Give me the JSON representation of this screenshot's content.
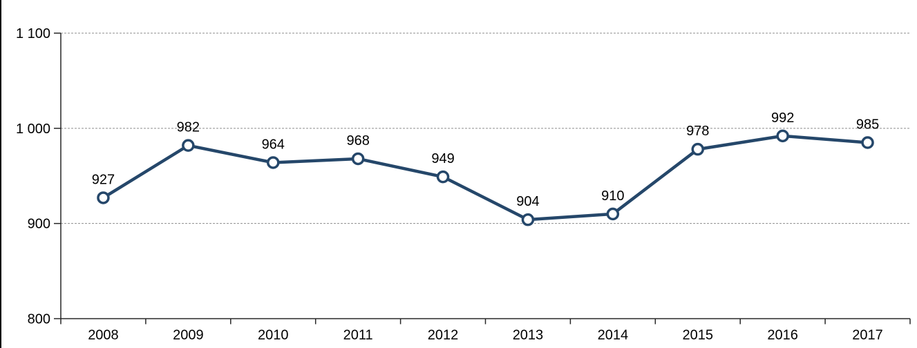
{
  "page": {
    "background_color": "#FFFFFF",
    "left_border_color": "#000000"
  },
  "chart_data": {
    "type": "line",
    "title": "",
    "categories": [
      "2008",
      "2009",
      "2010",
      "2011",
      "2012",
      "2013",
      "2014",
      "2015",
      "2016",
      "2017"
    ],
    "series": [
      {
        "name": "series-1",
        "values": [
          927,
          982,
          964,
          968,
          949,
          904,
          910,
          978,
          992,
          985
        ],
        "data_labels": [
          "927",
          "982",
          "964",
          "968",
          "949",
          "904",
          "910",
          "978",
          "992",
          "985"
        ],
        "line_color": "#25476A",
        "marker": {
          "shape": "circle",
          "fill": "#FFFFFF",
          "stroke": "#25476A"
        }
      }
    ],
    "xlabel": "",
    "ylabel": "",
    "y_axis": {
      "min": 800,
      "max": 1100,
      "step": 100,
      "tick_labels": [
        "800",
        "900",
        "1 000",
        "1 100"
      ]
    },
    "grid": {
      "horizontal": true,
      "style": "dashed",
      "color": "#8C8C8C"
    },
    "axis_color": "#262626",
    "text_color": "#000000",
    "legend": "none"
  }
}
